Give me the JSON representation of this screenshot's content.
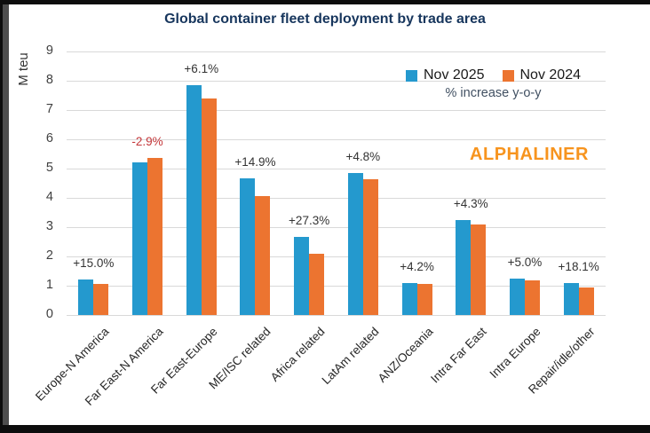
{
  "title": "Global container fleet deployment by trade area",
  "y_axis": {
    "label": "M teu"
  },
  "legend": {
    "series1_label": "Nov 2025",
    "series2_label": "Nov 2024",
    "note": "% increase y-o-y"
  },
  "watermark": "ALPHALINER",
  "colors": {
    "series1_blue": "#2499CE",
    "series2_orange": "#EC7430",
    "title_navy": "#17365D",
    "negative_annotation_red": "#C4373A",
    "watermark_orange": "#F7941E",
    "gridline_gray": "#D9D9D9"
  },
  "chart_data": {
    "type": "bar",
    "title": "Global container fleet deployment by trade area",
    "ylabel": "M teu",
    "xlabel": "",
    "ylim": [
      0,
      9
    ],
    "y_tick_step": 1,
    "grid": true,
    "legend_position": "top-right",
    "categories": [
      "Europe-N America",
      "Far East-N America",
      "Far East-Europe",
      "ME/ISC related",
      "Africa related",
      "LatAm related",
      "ANZ/Oceania",
      "Intra Far East",
      "Intra Europe",
      "Repair/idle/other"
    ],
    "series": [
      {
        "name": "Nov 2025",
        "color": "#2499CE",
        "values": [
          1.21,
          5.2,
          7.85,
          4.66,
          2.68,
          4.85,
          1.1,
          3.24,
          1.25,
          1.1
        ]
      },
      {
        "name": "Nov 2024",
        "color": "#EC7430",
        "values": [
          1.05,
          5.36,
          7.4,
          4.06,
          2.1,
          4.63,
          1.05,
          3.1,
          1.19,
          0.93
        ]
      }
    ],
    "annotations": [
      "+15.0%",
      "-2.9%",
      "+6.1%",
      "+14.9%",
      "+27.3%",
      "+4.8%",
      "+4.2%",
      "+4.3%",
      "+5.0%",
      "+18.1%"
    ]
  }
}
